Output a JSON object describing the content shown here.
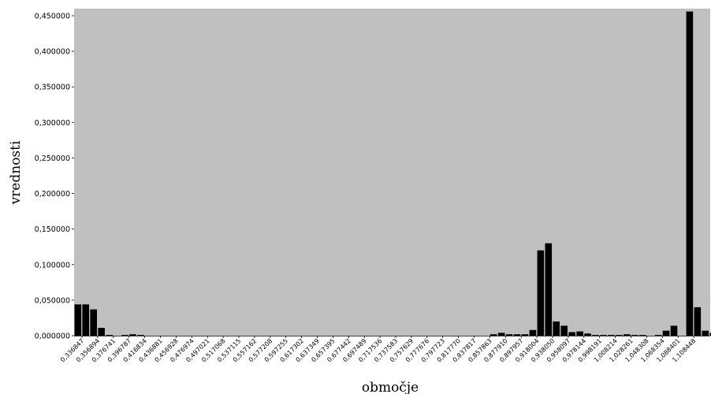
{
  "chart_data": {
    "type": "bar",
    "xlabel": "območje",
    "ylabel": "vrednosti",
    "ylim": [
      0,
      0.46
    ],
    "grid": false,
    "background_color": "#c0c0c0",
    "bar_color": "#000000",
    "yticks": [
      0,
      0.05,
      0.1,
      0.15,
      0.2,
      0.25,
      0.3,
      0.35,
      0.4,
      0.45
    ],
    "ytick_labels": [
      "0,000000",
      "0,050000",
      "0,100000",
      "0,150000",
      "0,200000",
      "0,250000",
      "0,300000",
      "0,350000",
      "0,400000",
      "0,450000"
    ],
    "xtick_labels": [
      "0,336847",
      "0,356894",
      "0,376741",
      "0,396787",
      "0,416834",
      "0,436881",
      "0,456928",
      "0,476974",
      "0,497021",
      "0,517068",
      "0,537115",
      "0,557162",
      "0,577208",
      "0,597255",
      "0,617302",
      "0,637349",
      "0,657395",
      "0,677442",
      "0,697489",
      "0,717536",
      "0,737583",
      "0,757629",
      "0,777676",
      "0,797723",
      "0,817770",
      "0,837817",
      "0,857863",
      "0,877910",
      "0,897957",
      "0,918004",
      "0,938050",
      "0,958097",
      "0,978144",
      "0,998191",
      "1,008214",
      "1,028261",
      "1,048308",
      "1,068354",
      "1,088401",
      "1,108448"
    ],
    "values": [
      0.044,
      0.044,
      0.037,
      0.011,
      0.001,
      0,
      0.001,
      0.002,
      0.001,
      0,
      0,
      0,
      0,
      0,
      0,
      0,
      0,
      0,
      0,
      0,
      0,
      0,
      0,
      0,
      0,
      0,
      0,
      0,
      0,
      0,
      0,
      0,
      0,
      0,
      0,
      0,
      0,
      0,
      0,
      0,
      0,
      0,
      0,
      0,
      0,
      0,
      0,
      0,
      0,
      0,
      0,
      0,
      0,
      0.002,
      0.004,
      0.002,
      0.002,
      0.002,
      0.008,
      0.12,
      0.13,
      0.02,
      0.014,
      0.005,
      0.006,
      0.003,
      0.001,
      0.001,
      0.001,
      0.001,
      0.002,
      0.001,
      0.001,
      0,
      0.001,
      0.007,
      0.014,
      0,
      0.456,
      0.04,
      0.007,
      0.004,
      0.001,
      0.001,
      0.001,
      0.001,
      0,
      0,
      0
    ]
  }
}
